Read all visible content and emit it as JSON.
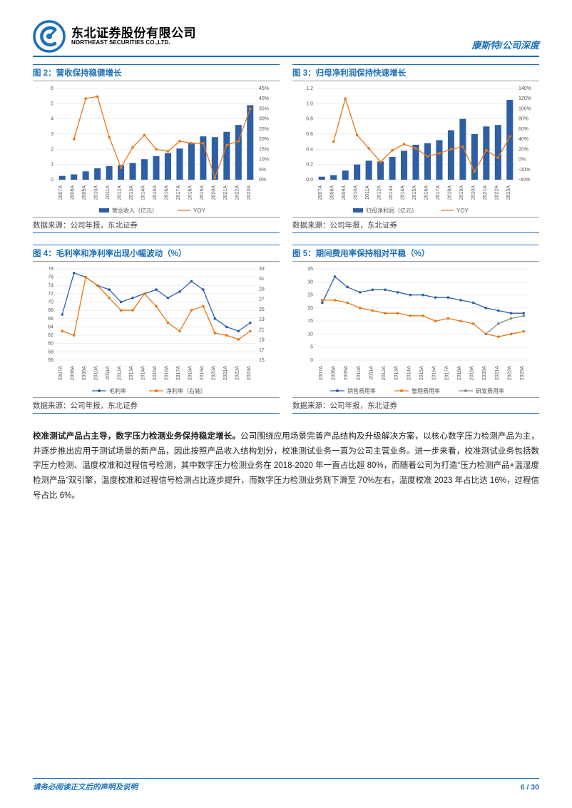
{
  "header": {
    "company_cn": "东北证券股份有限公司",
    "company_en": "NORTHEAST SECURITIES CO.,LTD.",
    "right_text": "康斯特/公司深度"
  },
  "charts": {
    "years": [
      "2007A",
      "2008A",
      "2009A",
      "2010A",
      "2011A",
      "2012A",
      "2013A",
      "2014A",
      "2015A",
      "2016A",
      "2017A",
      "2018A",
      "2019A",
      "2020A",
      "2021A",
      "2022A",
      "2023A"
    ],
    "chart2": {
      "title": "图 2：营收保持稳健增长",
      "left_label": "",
      "y1_lim": [
        0,
        6
      ],
      "y1_ticks": [
        0,
        1,
        2,
        3,
        4,
        5,
        6
      ],
      "y2_lim": [
        0,
        45
      ],
      "y2_ticks": [
        0,
        5,
        10,
        15,
        20,
        25,
        30,
        35,
        40,
        45
      ],
      "bars": [
        0.25,
        0.35,
        0.55,
        0.75,
        0.9,
        0.95,
        1.1,
        1.35,
        1.55,
        1.75,
        2.05,
        2.4,
        2.85,
        2.8,
        3.15,
        3.6,
        4.9
      ],
      "line": [
        null,
        20,
        40,
        41,
        21,
        6,
        16,
        22,
        15,
        14,
        19,
        18,
        18,
        1,
        17,
        19,
        35
      ],
      "legend_bar": "营业收入（亿元）",
      "legend_line": "YOY",
      "bar_color": "#2e5fa5",
      "line_color": "#e67817",
      "bg": "#ffffff"
    },
    "chart3": {
      "title": "图 3：归母净利润保持快速增长",
      "y1_lim": [
        0,
        1.2
      ],
      "y1_ticks": [
        0,
        0.2,
        0.4,
        0.6,
        0.8,
        1.0,
        1.2
      ],
      "y2_lim": [
        -40,
        140
      ],
      "y2_ticks": [
        -40,
        -20,
        0,
        20,
        40,
        60,
        80,
        100,
        120,
        140
      ],
      "bars": [
        0.04,
        0.06,
        0.12,
        0.2,
        0.25,
        0.24,
        0.3,
        0.38,
        0.46,
        0.48,
        0.52,
        0.65,
        0.8,
        0.6,
        0.7,
        0.72,
        1.05
      ],
      "line": [
        null,
        35,
        120,
        48,
        22,
        -5,
        18,
        30,
        22,
        6,
        12,
        20,
        25,
        -24,
        18,
        3,
        45
      ],
      "legend_bar": "归母净利润（亿元）",
      "legend_line": "YOY",
      "bar_color": "#2e5fa5",
      "line_color": "#e67817"
    },
    "chart4": {
      "title": "图 4：毛利率和净利率出现小幅波动（%）",
      "y1_lim": [
        56,
        78
      ],
      "y1_ticks": [
        56,
        58,
        60,
        62,
        64,
        66,
        68,
        70,
        72,
        74,
        76,
        78
      ],
      "y2_lim": [
        15,
        33
      ],
      "y2_ticks": [
        15,
        17,
        19,
        21,
        23,
        25,
        27,
        29,
        31,
        33
      ],
      "line_blue": [
        67,
        77,
        76,
        74,
        73,
        70,
        71,
        72,
        73,
        71,
        72.5,
        75,
        73,
        66,
        64,
        63,
        65
      ],
      "line_orange": [
        63,
        62,
        76,
        74,
        71,
        68,
        68,
        72,
        69,
        65,
        63,
        68,
        69,
        62.5,
        62,
        61,
        63
      ],
      "legend_blue": "毛利率",
      "legend_orange": "净利率（右轴）",
      "blue_color": "#2e5fa5",
      "orange_color": "#e67817"
    },
    "chart5": {
      "title": "图 5：期间费用率保持相对平稳（%）",
      "y_lim": [
        0,
        35
      ],
      "y_ticks": [
        0,
        5,
        10,
        15,
        20,
        25,
        30,
        35
      ],
      "line_blue": [
        22,
        32,
        28,
        26,
        27,
        27,
        26,
        25,
        25,
        24,
        24,
        23,
        22,
        20,
        19,
        18,
        18
      ],
      "line_orange": [
        23,
        23,
        22,
        20,
        19,
        18,
        18,
        17,
        17,
        15,
        16,
        15,
        14,
        10,
        9,
        10,
        11
      ],
      "line_grey": [
        null,
        null,
        null,
        null,
        null,
        null,
        null,
        null,
        null,
        null,
        null,
        null,
        null,
        10,
        14,
        16,
        17
      ],
      "legend_blue": "销售费用率",
      "legend_orange": "管理费用率",
      "legend_grey": "研发费用率",
      "blue_color": "#2e5fa5",
      "orange_color": "#e67817",
      "grey_color": "#888888"
    },
    "source": "数据来源：公司年报，东北证券"
  },
  "paragraph": {
    "lead": "校准测试产品占主导，数字压力检测业务保持稳定增长。",
    "body": "公司围绕应用场景完善产品结构及升级解决方案，以核心数字压力检测产品为主，并逐步推出应用于测试场景的新产品，因此按照产品收入结构划分，校准测试业务一直为公司主营业务。进一步来看，校准测试业务包括数字压力检测、温度校准和过程信号检测，其中数字压力检测业务在 2018-2020 年一直占比超 80%，而随着公司为打造“压力检测产品+温湿度检测产品”双引擎，温度校准和过程信号检测占比逐步提升，而数字压力检测业务则下滑至 70%左右，温度校准 2023 年占比达 16%，过程信号占比 6%。"
  },
  "footer": {
    "left": "请务必阅读正文后的声明及说明",
    "right": "6 / 30"
  }
}
